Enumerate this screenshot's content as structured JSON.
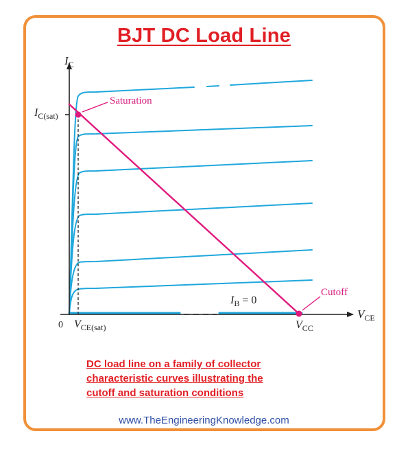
{
  "title": "BJT DC Load Line",
  "caption": {
    "lines": [
      "DC load line on a family of collector",
      "characteristic curves illustrating the",
      "cutoff and saturation conditions"
    ]
  },
  "website": "www.TheEngineeringKnowledge.com",
  "diagram": {
    "y_axis_label_main": "I",
    "y_axis_label_sub": "C",
    "x_axis_label_main": "V",
    "x_axis_label_sub": "CE",
    "origin_label": "0",
    "ic_sat_main": "I",
    "ic_sat_sub": "C(sat)",
    "vce_sat_main": "V",
    "vce_sat_sub": "CE(sat)",
    "vcc_main": "V",
    "vcc_sub": "CC",
    "ib_main": "I",
    "ib_sub": "B",
    "ib_value": " = 0",
    "saturation_label": "Saturation",
    "cutoff_label": "Cutoff"
  },
  "colors": {
    "title": "#e11f25",
    "frame": "#f0913a",
    "curves": "#1fa7dc",
    "load_line": "#e0197d",
    "axes": "#222222",
    "website": "#2f4ea5"
  }
}
